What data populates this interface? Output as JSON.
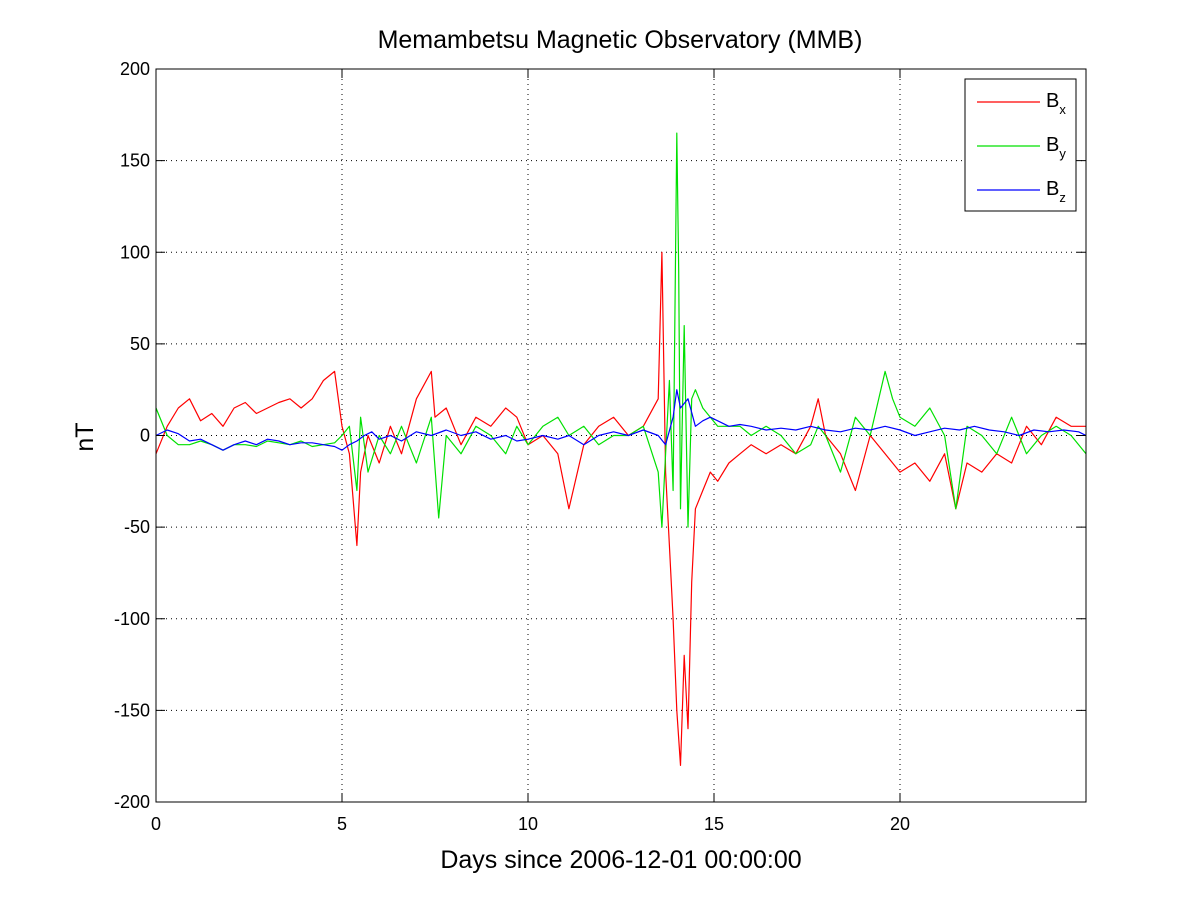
{
  "chart_data": {
    "type": "line",
    "title": "Memambetsu Magnetic Observatory (MMB)",
    "xlabel": "Days since 2006-12-01 00:00:00",
    "ylabel": "nT",
    "xlim": [
      0,
      25
    ],
    "ylim": [
      -200,
      200
    ],
    "xticks": [
      0,
      5,
      10,
      15,
      20
    ],
    "yticks": [
      -200,
      -150,
      -100,
      -50,
      0,
      50,
      100,
      150,
      200
    ],
    "grid": true,
    "legend_position": "top-right",
    "series": [
      {
        "name": "B",
        "subscript": "x",
        "color": "#ff0000",
        "x": [
          0,
          0.3,
          0.6,
          0.9,
          1.2,
          1.5,
          1.8,
          2.1,
          2.4,
          2.7,
          3.0,
          3.3,
          3.6,
          3.9,
          4.2,
          4.5,
          4.8,
          5.0,
          5.2,
          5.4,
          5.5,
          5.7,
          6.0,
          6.3,
          6.6,
          7.0,
          7.4,
          7.5,
          7.8,
          8.2,
          8.6,
          9.0,
          9.4,
          9.7,
          10.0,
          10.4,
          10.8,
          11.1,
          11.5,
          11.9,
          12.3,
          12.7,
          13.1,
          13.5,
          13.6,
          13.7,
          13.8,
          13.9,
          14.0,
          14.1,
          14.2,
          14.3,
          14.4,
          14.5,
          14.7,
          14.9,
          15.1,
          15.4,
          15.7,
          16.0,
          16.4,
          16.8,
          17.2,
          17.6,
          17.8,
          18.0,
          18.4,
          18.8,
          19.2,
          19.6,
          20.0,
          20.4,
          20.8,
          21.2,
          21.5,
          21.8,
          22.2,
          22.6,
          23.0,
          23.4,
          23.8,
          24.2,
          24.6,
          25.0
        ],
        "values": [
          -10,
          5,
          15,
          20,
          8,
          12,
          5,
          15,
          18,
          12,
          15,
          18,
          20,
          15,
          20,
          30,
          35,
          5,
          -10,
          -60,
          -20,
          0,
          -15,
          5,
          -10,
          20,
          35,
          10,
          15,
          -5,
          10,
          5,
          15,
          10,
          -5,
          0,
          -10,
          -40,
          -5,
          5,
          10,
          0,
          5,
          20,
          100,
          -20,
          -60,
          -100,
          -150,
          -180,
          -120,
          -160,
          -80,
          -40,
          -30,
          -20,
          -25,
          -15,
          -10,
          -5,
          -10,
          -5,
          -10,
          5,
          20,
          0,
          -10,
          -30,
          0,
          -10,
          -20,
          -15,
          -25,
          -10,
          -40,
          -15,
          -20,
          -10,
          -15,
          5,
          -5,
          10,
          5,
          5
        ]
      },
      {
        "name": "B",
        "subscript": "y",
        "color": "#00e000",
        "x": [
          0,
          0.3,
          0.6,
          0.9,
          1.2,
          1.5,
          1.8,
          2.1,
          2.4,
          2.7,
          3.0,
          3.3,
          3.6,
          3.9,
          4.2,
          4.5,
          4.8,
          5.0,
          5.2,
          5.4,
          5.5,
          5.7,
          6.0,
          6.3,
          6.6,
          7.0,
          7.4,
          7.6,
          7.8,
          8.2,
          8.6,
          9.0,
          9.4,
          9.7,
          10.0,
          10.4,
          10.8,
          11.1,
          11.5,
          11.9,
          12.3,
          12.7,
          13.1,
          13.5,
          13.6,
          13.7,
          13.8,
          13.9,
          14.0,
          14.05,
          14.1,
          14.2,
          14.3,
          14.4,
          14.5,
          14.7,
          14.9,
          15.1,
          15.4,
          15.7,
          16.0,
          16.4,
          16.8,
          17.2,
          17.6,
          17.8,
          18.0,
          18.4,
          18.8,
          19.2,
          19.6,
          19.8,
          20.0,
          20.4,
          20.8,
          21.2,
          21.5,
          21.8,
          22.2,
          22.6,
          23.0,
          23.4,
          23.8,
          24.2,
          24.6,
          25.0
        ],
        "values": [
          15,
          0,
          -5,
          -5,
          -3,
          -5,
          -8,
          -5,
          -5,
          -6,
          -3,
          -4,
          -5,
          -3,
          -6,
          -5,
          -4,
          0,
          5,
          -30,
          10,
          -20,
          0,
          -10,
          5,
          -15,
          10,
          -45,
          0,
          -10,
          5,
          0,
          -10,
          5,
          -5,
          5,
          10,
          0,
          5,
          -5,
          0,
          0,
          5,
          -20,
          -50,
          -10,
          30,
          -30,
          165,
          90,
          -40,
          60,
          -50,
          20,
          25,
          15,
          10,
          5,
          5,
          5,
          0,
          5,
          0,
          -10,
          -5,
          5,
          0,
          -20,
          10,
          0,
          35,
          20,
          10,
          5,
          15,
          0,
          -40,
          5,
          0,
          -10,
          10,
          -10,
          0,
          5,
          0,
          -10
        ]
      },
      {
        "name": "B",
        "subscript": "z",
        "color": "#0000ff",
        "x": [
          0,
          0.3,
          0.6,
          0.9,
          1.2,
          1.5,
          1.8,
          2.1,
          2.4,
          2.7,
          3.0,
          3.3,
          3.6,
          3.9,
          4.2,
          4.5,
          4.8,
          5.0,
          5.2,
          5.4,
          5.6,
          5.8,
          6.0,
          6.3,
          6.6,
          7.0,
          7.4,
          7.8,
          8.2,
          8.6,
          9.0,
          9.4,
          9.7,
          10.0,
          10.4,
          10.8,
          11.1,
          11.5,
          11.9,
          12.3,
          12.7,
          13.1,
          13.5,
          13.7,
          13.9,
          14.0,
          14.1,
          14.3,
          14.5,
          14.7,
          14.9,
          15.1,
          15.4,
          15.7,
          16.0,
          16.4,
          16.8,
          17.2,
          17.6,
          18.0,
          18.4,
          18.8,
          19.2,
          19.6,
          20.0,
          20.4,
          20.8,
          21.2,
          21.6,
          22.0,
          22.4,
          22.8,
          23.2,
          23.6,
          24.0,
          24.4,
          24.8,
          25.0
        ],
        "values": [
          0,
          3,
          1,
          -3,
          -2,
          -5,
          -8,
          -5,
          -3,
          -5,
          -2,
          -3,
          -5,
          -4,
          -4,
          -5,
          -6,
          -8,
          -5,
          -3,
          0,
          2,
          -2,
          0,
          -3,
          2,
          0,
          3,
          0,
          2,
          -2,
          0,
          -3,
          -2,
          0,
          -2,
          0,
          -5,
          0,
          2,
          0,
          3,
          0,
          -5,
          10,
          25,
          15,
          20,
          5,
          8,
          10,
          8,
          5,
          6,
          5,
          3,
          4,
          3,
          5,
          3,
          2,
          4,
          3,
          5,
          3,
          0,
          2,
          4,
          3,
          5,
          3,
          2,
          0,
          3,
          2,
          3,
          2,
          0
        ]
      }
    ]
  }
}
